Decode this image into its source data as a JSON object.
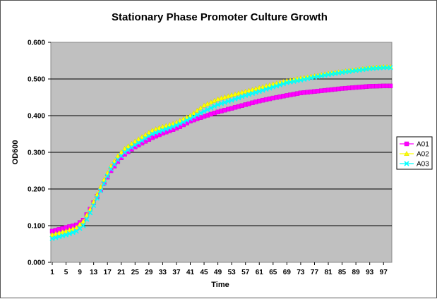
{
  "chart_data": {
    "type": "line",
    "title": "Stationary Phase Promoter Culture Growth",
    "xlabel": "Time",
    "ylabel": "OD600",
    "ylim": [
      0,
      0.6
    ],
    "xlim": [
      1,
      99
    ],
    "yticks": [
      "0.000",
      "0.100",
      "0.200",
      "0.300",
      "0.400",
      "0.500",
      "0.600"
    ],
    "xticks": [
      "1",
      "5",
      "9",
      "13",
      "17",
      "21",
      "25",
      "29",
      "33",
      "37",
      "41",
      "45",
      "49",
      "53",
      "57",
      "61",
      "65",
      "69",
      "73",
      "77",
      "81",
      "85",
      "89",
      "93",
      "97"
    ],
    "grid": true,
    "legend_position": "right",
    "plot_background": "#c0c0c0",
    "series": [
      {
        "name": "A01",
        "color": "#ff00ff",
        "marker": "square",
        "anchors": [
          [
            1,
            0.085
          ],
          [
            5,
            0.095
          ],
          [
            8,
            0.102
          ],
          [
            10,
            0.115
          ],
          [
            12,
            0.145
          ],
          [
            14,
            0.18
          ],
          [
            16,
            0.215
          ],
          [
            18,
            0.25
          ],
          [
            20,
            0.275
          ],
          [
            22,
            0.295
          ],
          [
            25,
            0.315
          ],
          [
            28,
            0.33
          ],
          [
            30,
            0.34
          ],
          [
            33,
            0.352
          ],
          [
            36,
            0.362
          ],
          [
            38,
            0.37
          ],
          [
            41,
            0.385
          ],
          [
            45,
            0.398
          ],
          [
            49,
            0.41
          ],
          [
            53,
            0.42
          ],
          [
            57,
            0.43
          ],
          [
            61,
            0.44
          ],
          [
            65,
            0.448
          ],
          [
            69,
            0.455
          ],
          [
            73,
            0.462
          ],
          [
            77,
            0.466
          ],
          [
            81,
            0.47
          ],
          [
            85,
            0.474
          ],
          [
            89,
            0.477
          ],
          [
            93,
            0.48
          ],
          [
            97,
            0.481
          ],
          [
            99,
            0.481
          ]
        ]
      },
      {
        "name": "A02",
        "color": "#ffff00",
        "marker": "triangle",
        "anchors": [
          [
            1,
            0.075
          ],
          [
            5,
            0.085
          ],
          [
            8,
            0.095
          ],
          [
            10,
            0.112
          ],
          [
            12,
            0.145
          ],
          [
            14,
            0.185
          ],
          [
            16,
            0.225
          ],
          [
            18,
            0.262
          ],
          [
            20,
            0.29
          ],
          [
            22,
            0.31
          ],
          [
            25,
            0.33
          ],
          [
            28,
            0.348
          ],
          [
            30,
            0.36
          ],
          [
            33,
            0.37
          ],
          [
            36,
            0.378
          ],
          [
            38,
            0.386
          ],
          [
            41,
            0.4
          ],
          [
            45,
            0.428
          ],
          [
            49,
            0.445
          ],
          [
            53,
            0.456
          ],
          [
            57,
            0.466
          ],
          [
            61,
            0.476
          ],
          [
            65,
            0.486
          ],
          [
            69,
            0.495
          ],
          [
            73,
            0.502
          ],
          [
            77,
            0.508
          ],
          [
            81,
            0.515
          ],
          [
            85,
            0.52
          ],
          [
            89,
            0.525
          ],
          [
            93,
            0.53
          ],
          [
            97,
            0.533
          ],
          [
            99,
            0.533
          ]
        ]
      },
      {
        "name": "A03",
        "color": "#00ffff",
        "marker": "x",
        "anchors": [
          [
            1,
            0.065
          ],
          [
            5,
            0.075
          ],
          [
            8,
            0.085
          ],
          [
            10,
            0.1
          ],
          [
            12,
            0.135
          ],
          [
            14,
            0.175
          ],
          [
            16,
            0.215
          ],
          [
            18,
            0.255
          ],
          [
            20,
            0.28
          ],
          [
            22,
            0.3
          ],
          [
            25,
            0.32
          ],
          [
            28,
            0.338
          ],
          [
            30,
            0.35
          ],
          [
            33,
            0.36
          ],
          [
            36,
            0.37
          ],
          [
            38,
            0.378
          ],
          [
            41,
            0.392
          ],
          [
            45,
            0.412
          ],
          [
            49,
            0.43
          ],
          [
            53,
            0.442
          ],
          [
            57,
            0.455
          ],
          [
            61,
            0.466
          ],
          [
            65,
            0.478
          ],
          [
            69,
            0.49
          ],
          [
            73,
            0.497
          ],
          [
            77,
            0.505
          ],
          [
            81,
            0.512
          ],
          [
            85,
            0.518
          ],
          [
            89,
            0.523
          ],
          [
            93,
            0.528
          ],
          [
            97,
            0.531
          ],
          [
            99,
            0.531
          ]
        ]
      }
    ]
  }
}
